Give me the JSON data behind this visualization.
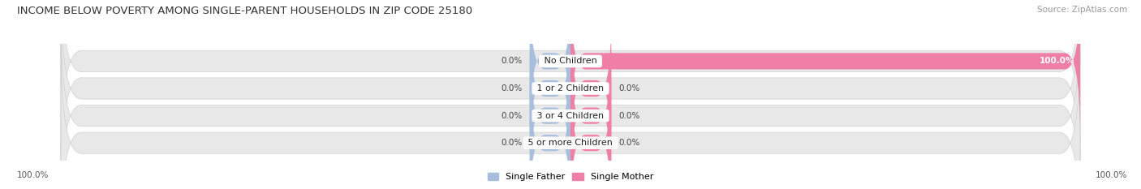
{
  "title": "INCOME BELOW POVERTY AMONG SINGLE-PARENT HOUSEHOLDS IN ZIP CODE 25180",
  "source": "Source: ZipAtlas.com",
  "categories": [
    "No Children",
    "1 or 2 Children",
    "3 or 4 Children",
    "5 or more Children"
  ],
  "single_father": [
    0.0,
    0.0,
    0.0,
    0.0
  ],
  "single_mother": [
    100.0,
    0.0,
    0.0,
    0.0
  ],
  "father_color": "#a8bedd",
  "mother_color": "#f07fa8",
  "bar_bg_color": "#e8e8e8",
  "bar_border_color": "#d0d0d0",
  "title_fontsize": 9.5,
  "source_fontsize": 7.5,
  "label_fontsize": 7.5,
  "cat_fontsize": 8,
  "legend_fontsize": 8,
  "axis_max": 100.0,
  "min_bar_pct": 8.0,
  "background_color": "#ffffff",
  "bar_bg_light": "#f0f0f0"
}
